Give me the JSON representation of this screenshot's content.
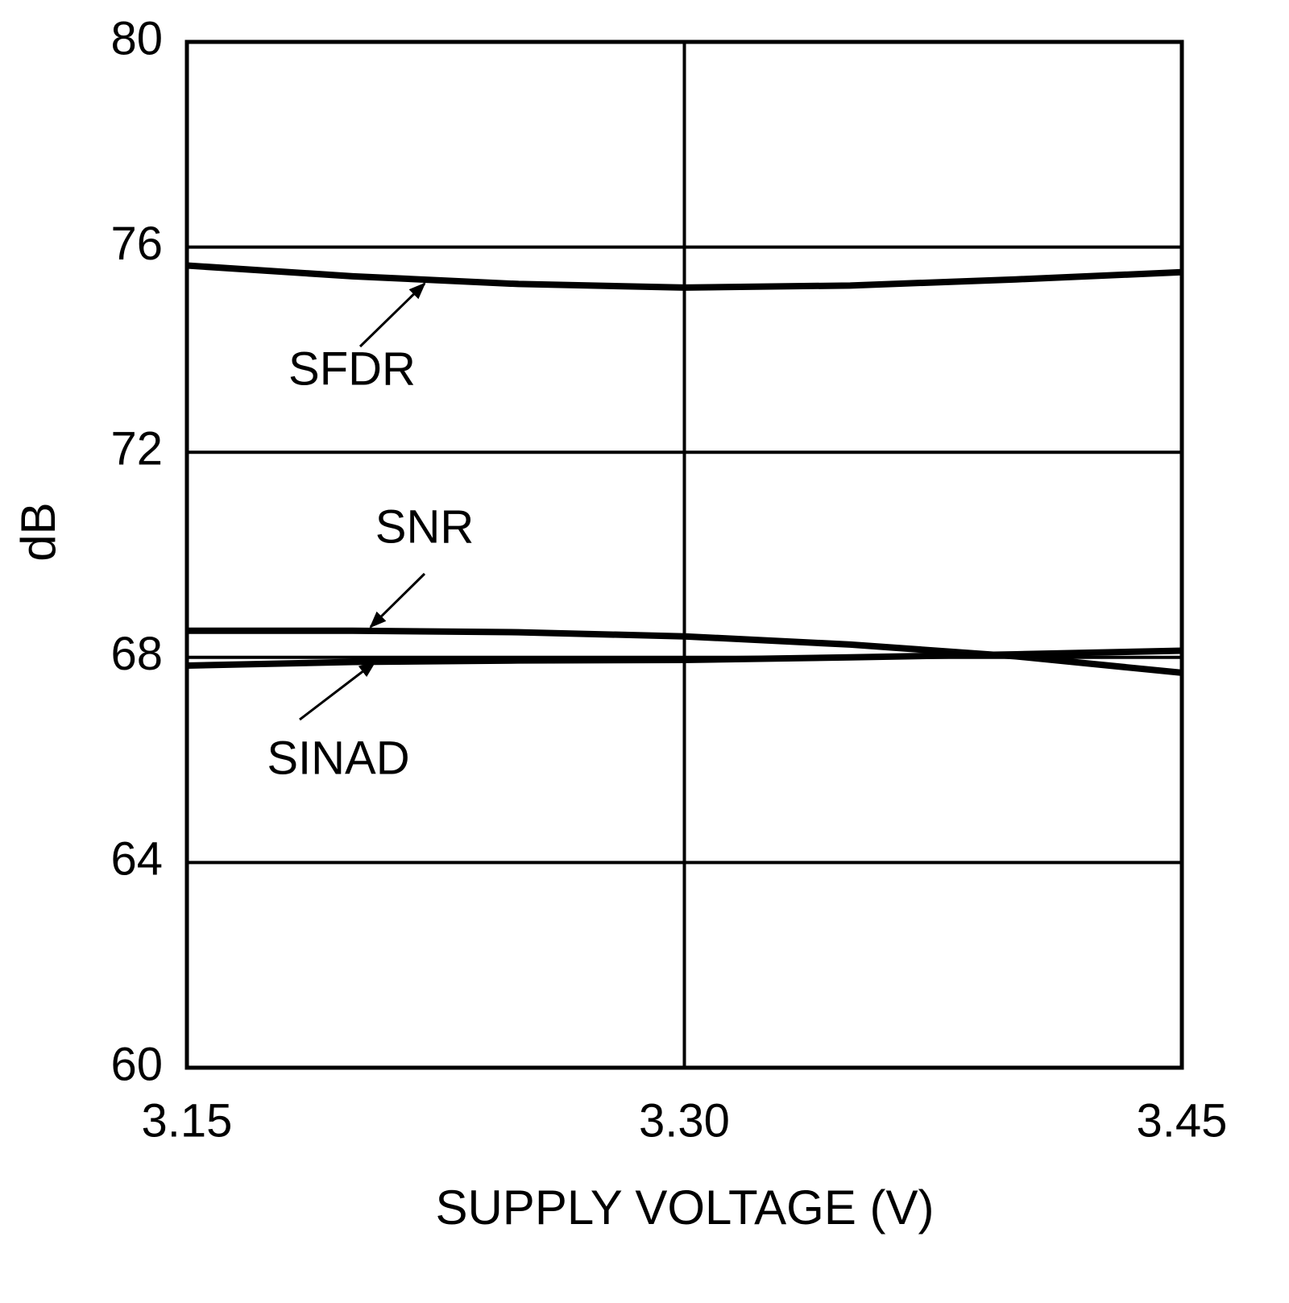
{
  "chart_data": {
    "type": "line",
    "xlabel": "SUPPLY VOLTAGE (V)",
    "ylabel": "dB",
    "xlim": [
      3.15,
      3.45
    ],
    "xticks": [
      3.15,
      {
        "value": 3.3,
        "label": "3.30"
      },
      3.45
    ],
    "ylim": [
      60,
      80
    ],
    "yticks": [
      60,
      64,
      68,
      72,
      76,
      80
    ],
    "grid": true,
    "x": [
      3.15,
      3.2,
      3.25,
      3.3,
      3.35,
      3.4,
      3.45
    ],
    "series": [
      {
        "name": "SFDR",
        "color": "#000000",
        "values": [
          75.64,
          75.43,
          75.28,
          75.21,
          75.25,
          75.37,
          75.51
        ]
      },
      {
        "name": "SNR",
        "color": "#000000",
        "values": [
          68.52,
          68.52,
          68.49,
          68.41,
          68.25,
          68.02,
          67.7
        ]
      },
      {
        "name": "SINAD",
        "color": "#000000",
        "values": [
          67.84,
          67.91,
          67.94,
          67.95,
          68.0,
          68.06,
          68.13
        ]
      }
    ]
  }
}
